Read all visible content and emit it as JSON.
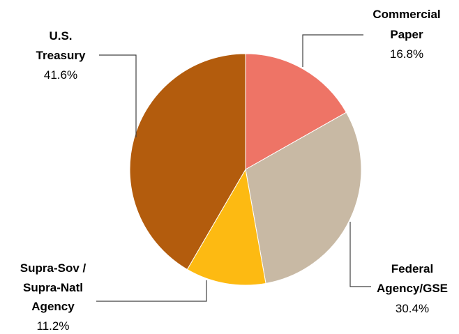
{
  "chart_data": {
    "type": "pie",
    "title": "",
    "slices": [
      {
        "name": "Commercial Paper",
        "label_lines": [
          "Commercial",
          "Paper"
        ],
        "value": 16.8,
        "display": "16.8%",
        "color": "#EE7466"
      },
      {
        "name": "Federal Agency/GSE",
        "label_lines": [
          "Federal",
          "Agency/GSE"
        ],
        "value": 30.4,
        "display": "30.4%",
        "color": "#C8B9A4"
      },
      {
        "name": "Supra-Sov / Supra-Natl Agency",
        "label_lines": [
          "Supra-Sov /",
          "Supra-Natl",
          "Agency"
        ],
        "value": 11.2,
        "display": "11.2%",
        "color": "#FDBA12"
      },
      {
        "name": "U.S. Treasury",
        "label_lines": [
          "U.S.",
          "Treasury"
        ],
        "value": 41.6,
        "display": "41.6%",
        "color": "#B35C0D"
      }
    ],
    "start_angle": "12 o'clock",
    "direction": "clockwise",
    "legend": "none"
  }
}
